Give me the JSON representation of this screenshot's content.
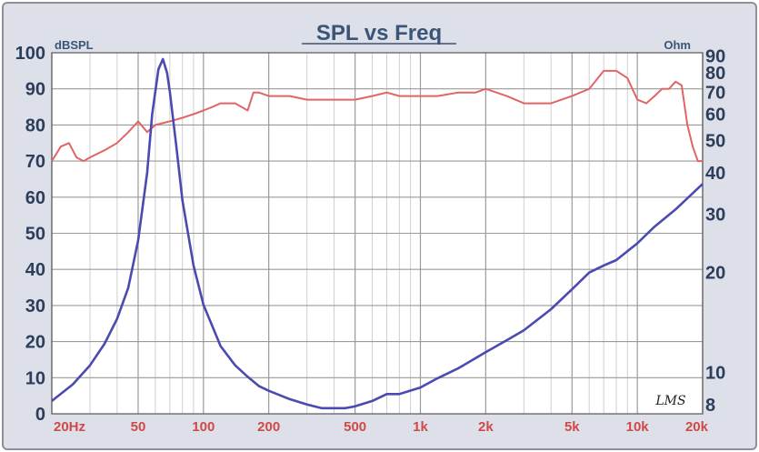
{
  "chart_data": {
    "type": "line",
    "title": "SPL vs Freq",
    "left_axis_label": "dBSPL",
    "right_axis_label": "Ohm",
    "x_scale": "log",
    "xlim": [
      20,
      20000
    ],
    "left_ylim": [
      0,
      100
    ],
    "right_scale": "log",
    "right_ylim": [
      7.5,
      92
    ],
    "x_ticks": [
      {
        "value": 20,
        "label": "20Hz"
      },
      {
        "value": 50,
        "label": "50"
      },
      {
        "value": 100,
        "label": "100"
      },
      {
        "value": 200,
        "label": "200"
      },
      {
        "value": 500,
        "label": "500"
      },
      {
        "value": 1000,
        "label": "1k"
      },
      {
        "value": 2000,
        "label": "2k"
      },
      {
        "value": 5000,
        "label": "5k"
      },
      {
        "value": 10000,
        "label": "10k"
      },
      {
        "value": 20000,
        "label": "20k"
      }
    ],
    "left_ticks": [
      0,
      10,
      20,
      30,
      40,
      50,
      60,
      70,
      80,
      90,
      100
    ],
    "right_ticks": [
      8,
      10,
      20,
      30,
      40,
      50,
      60,
      70,
      80,
      90
    ],
    "grid": true,
    "watermark": "LMS",
    "colors": {
      "spl": "#e06666",
      "impedance": "#4a4ab0",
      "plot_bg": "#ffffff",
      "major_grid": "#9a9a9a",
      "minor_grid": "#cfcfcf"
    },
    "series": [
      {
        "axis": "left",
        "color": "#e06666",
        "x": [
          20,
          22,
          24,
          26,
          28,
          30,
          35,
          40,
          45,
          50,
          55,
          60,
          70,
          80,
          90,
          100,
          110,
          120,
          140,
          150,
          160,
          170,
          180,
          200,
          250,
          300,
          400,
          500,
          600,
          700,
          800,
          900,
          1000,
          1200,
          1500,
          1800,
          2000,
          2500,
          3000,
          4000,
          5000,
          6000,
          7000,
          8000,
          9000,
          10000,
          11000,
          12000,
          13000,
          14000,
          15000,
          16000,
          17000,
          18000,
          19000,
          20000
        ],
        "y": [
          70,
          74,
          75,
          71,
          70,
          71,
          73,
          75,
          78,
          81,
          78,
          80,
          81,
          82,
          83,
          84,
          85,
          86,
          86,
          85,
          84,
          89,
          89,
          88,
          88,
          87,
          87,
          87,
          88,
          89,
          88,
          88,
          88,
          88,
          89,
          89,
          90,
          88,
          86,
          86,
          88,
          90,
          95,
          95,
          93,
          87,
          86,
          88,
          90,
          90,
          92,
          91,
          80,
          74,
          70,
          70
        ]
      },
      {
        "axis": "right",
        "color": "#4a4ab0",
        "x": [
          20,
          25,
          30,
          35,
          40,
          45,
          50,
          55,
          58,
          62,
          65,
          68,
          70,
          75,
          80,
          90,
          100,
          120,
          140,
          160,
          180,
          200,
          250,
          300,
          350,
          400,
          450,
          500,
          600,
          700,
          800,
          1000,
          1200,
          1500,
          2000,
          2500,
          3000,
          4000,
          5000,
          6000,
          7000,
          8000,
          10000,
          12000,
          15000,
          20000
        ],
        "y": [
          8.2,
          9.2,
          10.5,
          12.2,
          14.5,
          18,
          25,
          40,
          60,
          82,
          88,
          80,
          70,
          48,
          33,
          21,
          16,
          12,
          10.5,
          9.7,
          9.1,
          8.8,
          8.3,
          8.0,
          7.8,
          7.8,
          7.8,
          7.9,
          8.2,
          8.6,
          8.6,
          9.0,
          9.6,
          10.3,
          11.5,
          12.5,
          13.4,
          15.5,
          17.8,
          20.0,
          21.0,
          21.8,
          24.5,
          27.5,
          31.0,
          37.0
        ]
      }
    ]
  }
}
